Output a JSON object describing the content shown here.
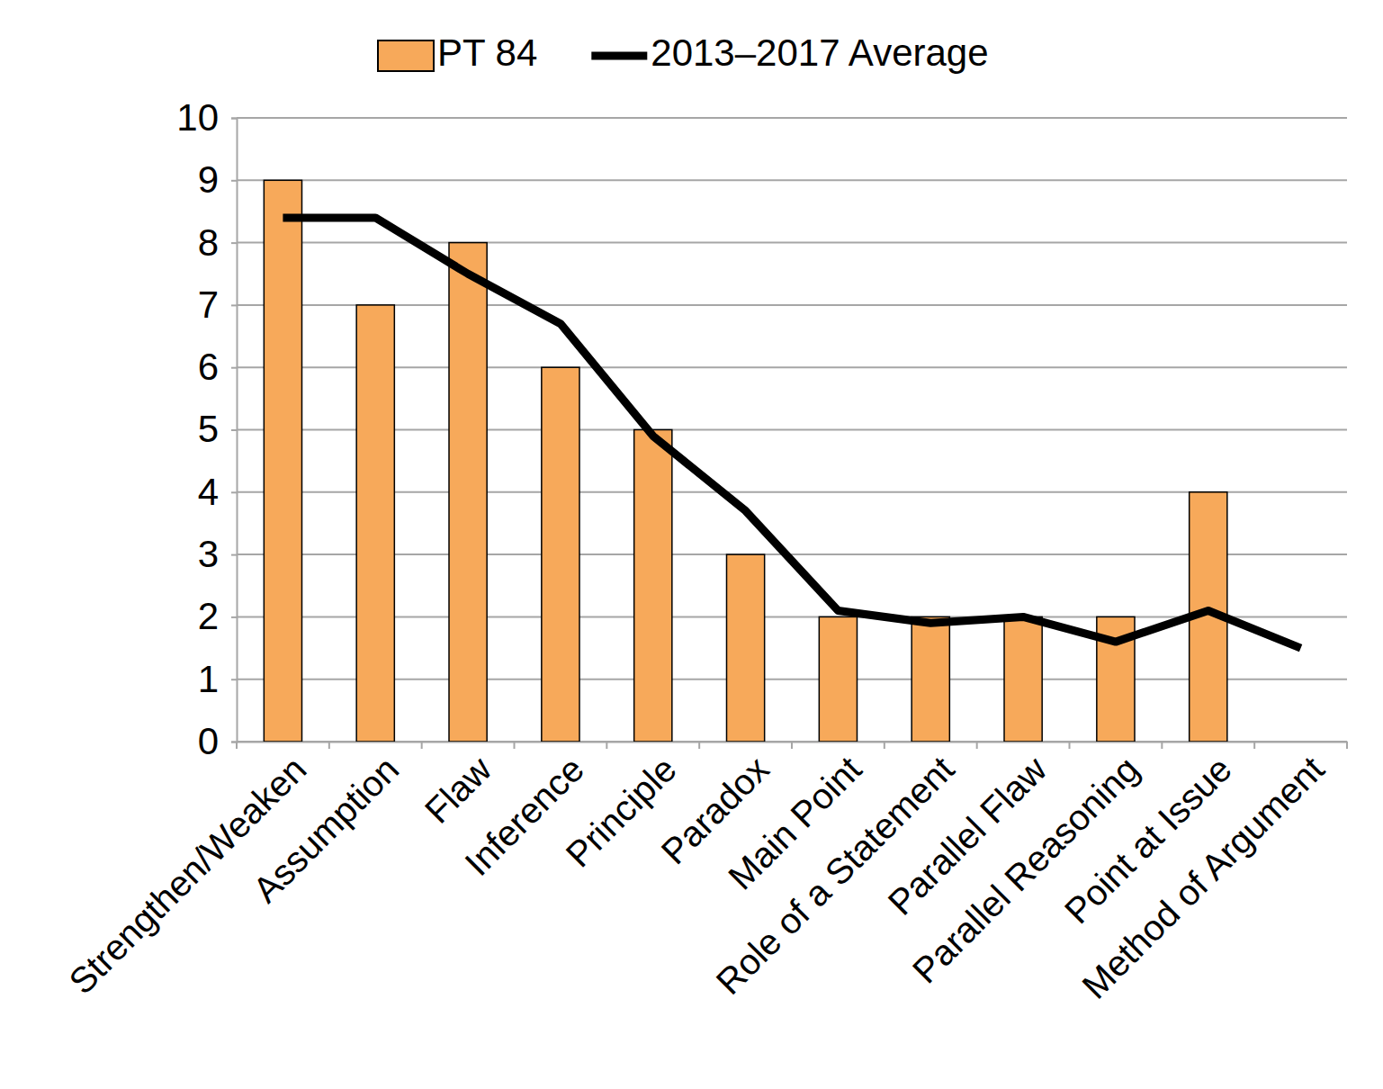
{
  "chart_data": {
    "type": "bar",
    "categories": [
      "Strengthen/Weaken",
      "Assumption",
      "Flaw",
      "Inference",
      "Principle",
      "Paradox",
      "Main Point",
      "Role of a Statement",
      "Parallel Flaw",
      "Parallel Reasoning",
      "Point at Issue",
      "Method of Argument"
    ],
    "series": [
      {
        "name": "PT 84",
        "type": "bar",
        "color": "#f7a95a",
        "values": [
          9,
          7,
          8,
          6,
          5,
          3,
          2,
          2,
          2,
          2,
          4,
          0
        ]
      },
      {
        "name": "2013–2017 Average",
        "type": "line",
        "color": "#000000",
        "values": [
          8.4,
          8.4,
          7.5,
          6.7,
          4.9,
          3.7,
          2.1,
          1.9,
          2.0,
          1.6,
          2.1,
          1.5
        ]
      }
    ],
    "ylim": [
      0,
      10
    ],
    "yticks": [
      0,
      1,
      2,
      3,
      4,
      5,
      6,
      7,
      8,
      9,
      10
    ],
    "grid": true,
    "legend": "top"
  }
}
